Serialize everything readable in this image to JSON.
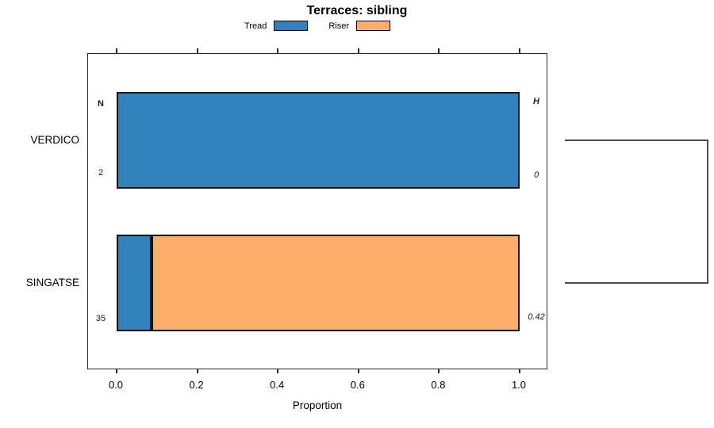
{
  "title": "Terraces: sibling",
  "legend": {
    "items": [
      {
        "label": "Tread",
        "color": "#3182BD"
      },
      {
        "label": "Riser",
        "color": "#FDAE6B"
      }
    ]
  },
  "columns": {
    "count_header": "N",
    "stat_header": "H"
  },
  "rows": [
    {
      "category": "VERDICO",
      "n": "2",
      "h": "0"
    },
    {
      "category": "SINGATSE",
      "n": "35",
      "h": "0.42"
    }
  ],
  "x_axis": {
    "label": "Proportion",
    "tick_labels": [
      "0.0",
      "0.2",
      "0.4",
      "0.6",
      "0.8",
      "1.0"
    ]
  },
  "chart_data": {
    "type": "bar",
    "orientation": "horizontal",
    "stacked": true,
    "title": "Terraces: sibling",
    "categories": [
      "VERDICO",
      "SINGATSE"
    ],
    "series": [
      {
        "name": "Tread",
        "color": "#3182BD",
        "values": [
          1.0,
          0.086
        ]
      },
      {
        "name": "Riser",
        "color": "#FDAE6B",
        "values": [
          0.0,
          0.914
        ]
      }
    ],
    "sample_sizes": {
      "label": "N",
      "values": [
        2,
        35
      ]
    },
    "statistic": {
      "label": "H",
      "values": [
        "0",
        "0.42"
      ]
    },
    "xlabel": "Proportion",
    "xlim": [
      0,
      1
    ],
    "x_ticks": [
      0.0,
      0.2,
      0.4,
      0.6,
      0.8,
      1.0
    ],
    "grid": false,
    "legend_position": "top-center",
    "right_annotation": "dendrogram bracket joining VERDICO and SINGATSE"
  }
}
